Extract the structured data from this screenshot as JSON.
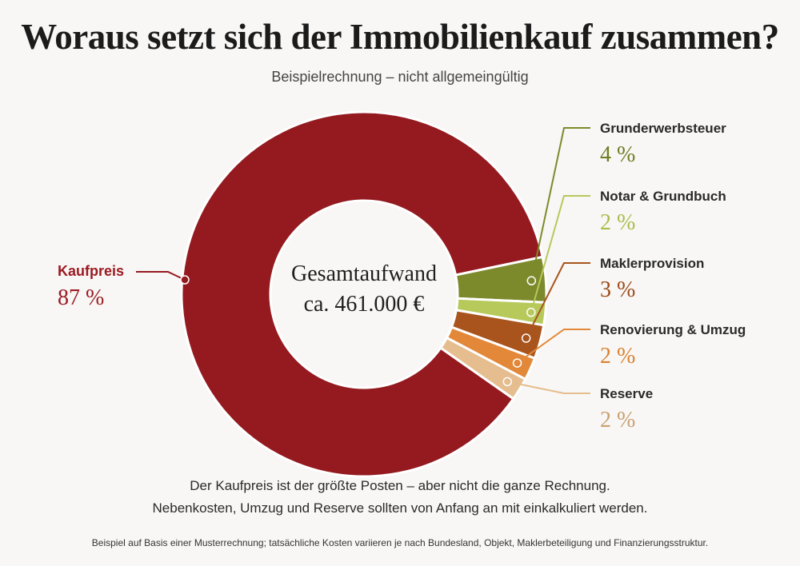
{
  "title": "Woraus setzt sich der Immobilienkauf zusammen?",
  "subtitle": "Beispielrechnung – nicht allgemeingültig",
  "chart_data": {
    "type": "pie",
    "variant": "donut",
    "center_label": [
      "Gesamtaufwand",
      "ca. 461.000 €"
    ],
    "slices": [
      {
        "name": "Kaufpreis",
        "value": 87,
        "label": "87 %",
        "color": "#941a1f",
        "label_color": "#9b1b22"
      },
      {
        "name": "Grunderwerbsteuer",
        "value": 4,
        "label": "4 %",
        "color": "#7d8a2c",
        "label_color": "#6f7d23"
      },
      {
        "name": "Notar & Grundbuch",
        "value": 2,
        "label": "2 %",
        "color": "#b6c95a",
        "label_color": "#a8bd4a"
      },
      {
        "name": "Maklerprovision",
        "value": 3,
        "label": "3 %",
        "color": "#a8541c",
        "label_color": "#9c4a17"
      },
      {
        "name": "Renovierung & Umzug",
        "value": 2,
        "label": "2 %",
        "color": "#e28838",
        "label_color": "#d9812f"
      },
      {
        "name": "Reserve",
        "value": 2,
        "label": "2 %",
        "color": "#e5bd8e",
        "label_color": "#c9a070"
      }
    ]
  },
  "note": [
    "Der Kaufpreis ist der größte Posten – aber nicht die ganze Rechnung.",
    "Nebenkosten, Umzug und Reserve sollten von Anfang an mit einkalkuliert werden."
  ],
  "footnote": "Beispiel auf Basis einer Musterrechnung; tatsächliche Kosten variieren je nach Bundesland, Objekt, Maklerbeteiligung und Finanzierungsstruktur."
}
